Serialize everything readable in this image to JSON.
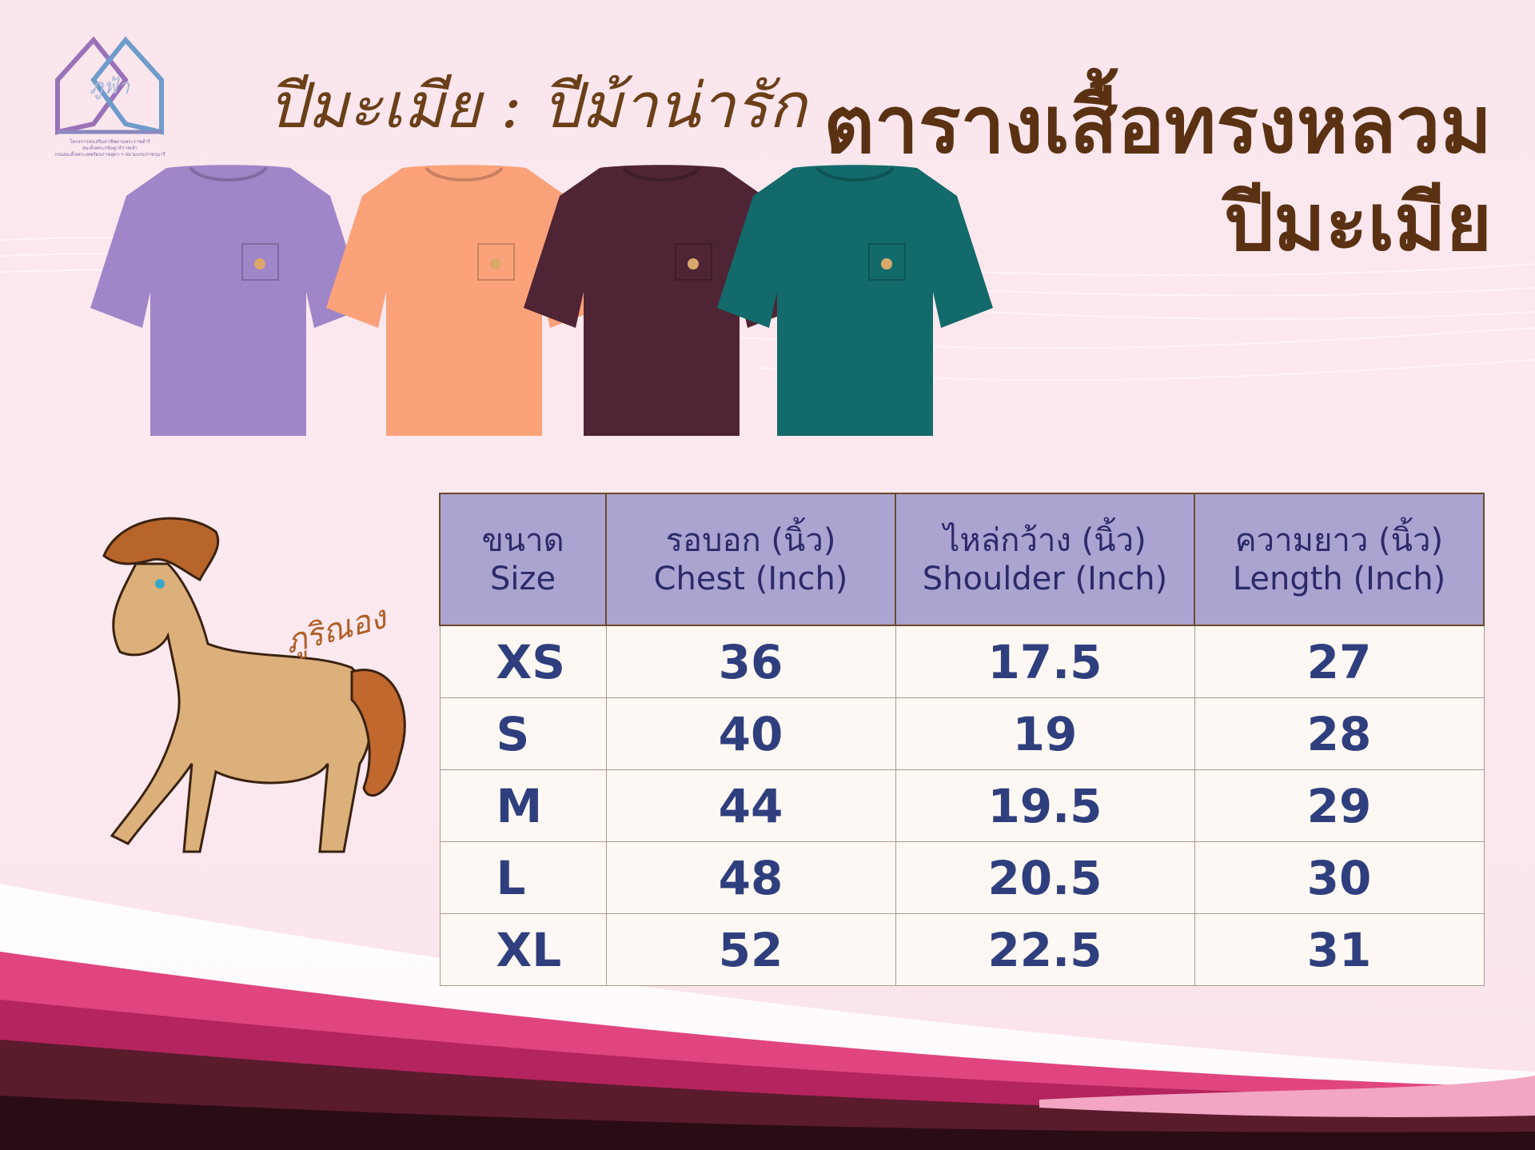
{
  "logo": {
    "mark_text": "ภูฟ้า",
    "caption_lines": [
      "โครงการส่งเสริมอาชีพตามพระราชดำริ",
      "สมเด็จพระกนิษฐาธิราชเจ้า",
      "กรมสมเด็จพระเทพรัตนราชสุดา ฯ สยามบรมราชกุมารี"
    ]
  },
  "subtitle": "ปีมะเมีย : ปีม้าน่ารัก",
  "title": {
    "line1": "ตารางเสื้อทรงหลวม",
    "line2": "ปีมะเมีย"
  },
  "shirts": [
    {
      "color_name": "purple",
      "color": "#9f86c8"
    },
    {
      "color_name": "orange",
      "color": "#fba27a"
    },
    {
      "color_name": "maroon",
      "color": "#4f2434"
    },
    {
      "color_name": "teal",
      "color": "#136a6a"
    }
  ],
  "mascot": {
    "signature": "ภูริณอง"
  },
  "size_table": {
    "headers": [
      {
        "th": "ขนาด",
        "en": "Size"
      },
      {
        "th": "รอบอก (นิ้ว)",
        "en": "Chest (Inch)"
      },
      {
        "th": "ไหล่กว้าง (นิ้ว)",
        "en": "Shoulder (Inch)"
      },
      {
        "th": "ความยาว (นิ้ว)",
        "en": "Length (Inch)"
      }
    ],
    "rows": [
      [
        "XS",
        "36",
        "17.5",
        "27"
      ],
      [
        "S",
        "40",
        "19",
        "28"
      ],
      [
        "M",
        "44",
        "19.5",
        "29"
      ],
      [
        "L",
        "48",
        "20.5",
        "30"
      ],
      [
        "XL",
        "52",
        "22.5",
        "31"
      ]
    ]
  },
  "colors": {
    "header_bg": "#aba3d0",
    "header_text": "#2c2a6a",
    "cell_text": "#2f3f7e",
    "title": "#5a3112"
  }
}
